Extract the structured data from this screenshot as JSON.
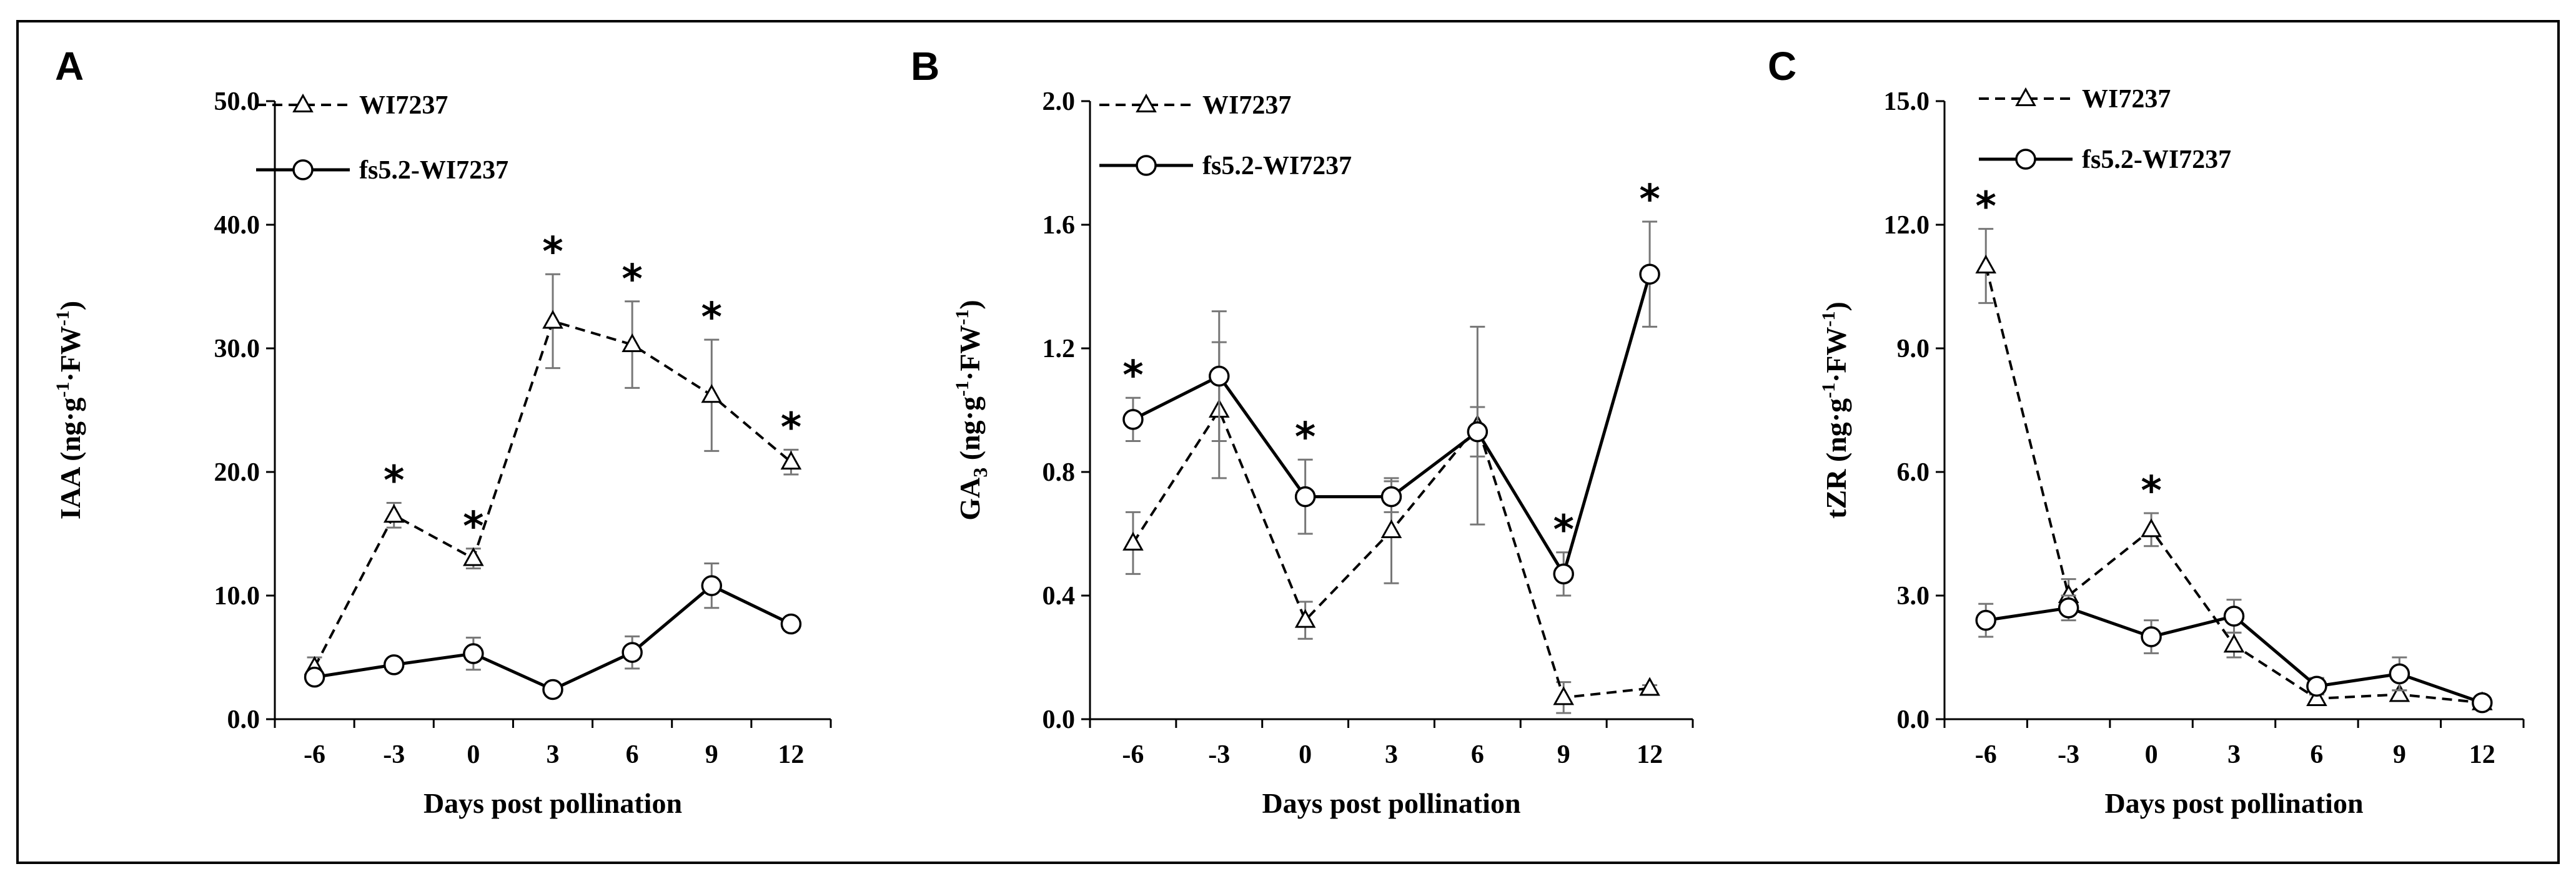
{
  "chart_data": [
    {
      "panel": "A",
      "type": "line",
      "xlabel": "Days post pollination",
      "ylabel": "IAA (ng·g-1·FW-1)",
      "ylabel_parts": {
        "main": "IAA (ng·g",
        "sup1": "-1",
        "mid": "·FW",
        "sup2": "-1",
        "end": ")"
      },
      "categories": [
        "-6",
        "-3",
        "0",
        "3",
        "6",
        "9",
        "12"
      ],
      "ylim": [
        0,
        50
      ],
      "yticks": [
        "0.0",
        "10.0",
        "20.0",
        "30.0",
        "40.0",
        "50.0"
      ],
      "series": [
        {
          "name": "WI7237",
          "style": "dashed",
          "marker": "triangle",
          "values": [
            4.2,
            16.5,
            13.0,
            32.2,
            30.3,
            26.2,
            20.8
          ],
          "errors": [
            0.8,
            1.0,
            0.8,
            3.8,
            3.5,
            4.5,
            1.0
          ]
        },
        {
          "name": "fs5.2-WI7237",
          "style": "solid",
          "marker": "circle",
          "values": [
            3.4,
            4.4,
            5.3,
            2.4,
            5.4,
            10.8,
            7.7
          ],
          "errors": [
            0.5,
            0.5,
            1.3,
            0.4,
            1.3,
            1.8,
            0.5
          ]
        }
      ],
      "significance": [
        "*",
        "*",
        "*",
        "*",
        "*",
        "*"
      ],
      "significance_at": [
        -3,
        0,
        3,
        6,
        9,
        12
      ]
    },
    {
      "panel": "B",
      "type": "line",
      "xlabel": "Days post pollination",
      "ylabel": "GA3 (ng·g-1·FW-1)",
      "ylabel_parts": {
        "main": "GA",
        "sub": "3",
        "main2": " (ng·g",
        "sup1": "-1",
        "mid": "·FW",
        "sup2": "-1",
        "end": ")"
      },
      "categories": [
        "-6",
        "-3",
        "0",
        "3",
        "6",
        "9",
        "12"
      ],
      "ylim": [
        0,
        2.0
      ],
      "yticks": [
        "0.0",
        "0.4",
        "0.8",
        "1.2",
        "1.6",
        "2.0"
      ],
      "series": [
        {
          "name": "WI7237",
          "style": "dashed",
          "marker": "triangle",
          "values": [
            0.57,
            1.0,
            0.32,
            0.61,
            0.95,
            0.07,
            0.1
          ],
          "errors": [
            0.1,
            0.22,
            0.06,
            0.17,
            0.32,
            0.05,
            0.01
          ]
        },
        {
          "name": "fs5.2-WI7237",
          "style": "solid",
          "marker": "circle",
          "values": [
            0.97,
            1.11,
            0.72,
            0.72,
            0.93,
            0.47,
            1.44
          ],
          "errors": [
            0.07,
            0.21,
            0.12,
            0.05,
            0.08,
            0.07,
            0.17
          ]
        }
      ],
      "significance": [
        "*",
        "*",
        "*",
        "*"
      ],
      "significance_at": [
        -6,
        0,
        9,
        12
      ]
    },
    {
      "panel": "C",
      "type": "line",
      "xlabel": "Days post pollination",
      "ylabel": "tZR (ng·g-1·FW-1)",
      "ylabel_parts": {
        "main": "tZR (ng·g",
        "sup1": "-1",
        "mid": "·FW",
        "sup2": "-1",
        "end": ")"
      },
      "categories": [
        "-6",
        "-3",
        "0",
        "3",
        "6",
        "9",
        "12"
      ],
      "ylim": [
        0,
        15.0
      ],
      "yticks": [
        "0.0",
        "3.0",
        "6.0",
        "9.0",
        "12.0",
        "15.0"
      ],
      "series": [
        {
          "name": "WI7237",
          "style": "dashed",
          "marker": "triangle",
          "values": [
            11.0,
            3.0,
            4.6,
            1.8,
            0.5,
            0.6,
            0.4
          ],
          "errors": [
            0.9,
            0.4,
            0.4,
            0.3,
            0.1,
            0.1,
            0.1
          ]
        },
        {
          "name": "fs5.2-WI7237",
          "style": "solid",
          "marker": "circle",
          "values": [
            2.4,
            2.7,
            2.0,
            2.5,
            0.8,
            1.1,
            0.4
          ],
          "errors": [
            0.4,
            0.3,
            0.4,
            0.4,
            0.2,
            0.4,
            0.1
          ]
        }
      ],
      "significance": [
        "*",
        "*"
      ],
      "significance_at": [
        -6,
        0
      ]
    }
  ]
}
